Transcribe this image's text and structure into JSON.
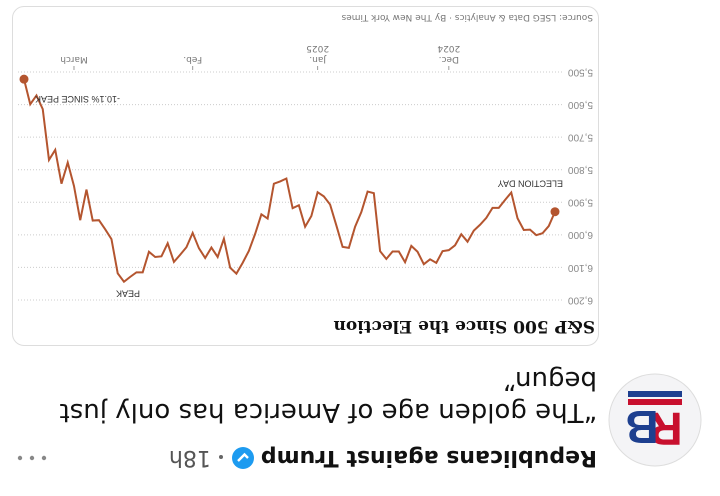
{
  "post": {
    "author": "Republicans against Trump",
    "time": "18h",
    "avatar": [
      "R",
      "B"
    ],
    "text": "“The golden age of America has only just begun”"
  },
  "chart_data": {
    "type": "line",
    "title": "S&P 500 Since the Election",
    "source": "Source: LSEG Data & Analytics · By The New York Times",
    "color": "#b4552f",
    "values": [
      5929,
      5973,
      5995,
      6001,
      5984,
      5985,
      5949,
      5870,
      5893,
      5917,
      5917,
      5948,
      5969,
      5987,
      6021,
      5998,
      6032,
      6047,
      6050,
      6086,
      6075,
      6090,
      6052,
      6034,
      6084,
      6051,
      6051,
      6074,
      6050,
      5872,
      5867,
      5930,
      5975,
      6040,
      6037,
      5971,
      5907,
      5882,
      5869,
      5942,
      5975,
      5909,
      5918,
      5827,
      5836,
      5843,
      5950,
      5937,
      5997,
      6049,
      6086,
      6119,
      6101,
      6012,
      6068,
      6039,
      6071,
      6041,
      5994,
      6038,
      6061,
      6083,
      6026,
      6066,
      6068,
      6052,
      6115,
      6115,
      6129,
      6144,
      6118,
      6013,
      5983,
      5955,
      5956,
      5861,
      5955,
      5850,
      5778,
      5843,
      5739,
      5770,
      5614,
      5572,
      5599,
      5522
    ],
    "xlim": [
      0,
      85
    ],
    "xticks": [
      {
        "value": 17,
        "label": "Dec.\n2024"
      },
      {
        "value": 38,
        "label": "Jan.\n2025"
      },
      {
        "value": 58,
        "label": "Feb."
      },
      {
        "value": 77,
        "label": "March"
      }
    ],
    "ylim": [
      5500,
      6200
    ],
    "yticks": [
      {
        "value": 5500,
        "label": "5,500"
      },
      {
        "value": 5600,
        "label": "5,600"
      },
      {
        "value": 5700,
        "label": "5,700"
      },
      {
        "value": 5800,
        "label": "5,800"
      },
      {
        "value": 5900,
        "label": "5,900"
      },
      {
        "value": 6000,
        "label": "6,000"
      },
      {
        "value": 6100,
        "label": "6,100"
      },
      {
        "value": 6200,
        "label": "6,200"
      }
    ],
    "grid": true,
    "annotations": [
      "ELECTION DAY",
      "PEAK",
      "-10.1% SINCE PEAK"
    ]
  }
}
